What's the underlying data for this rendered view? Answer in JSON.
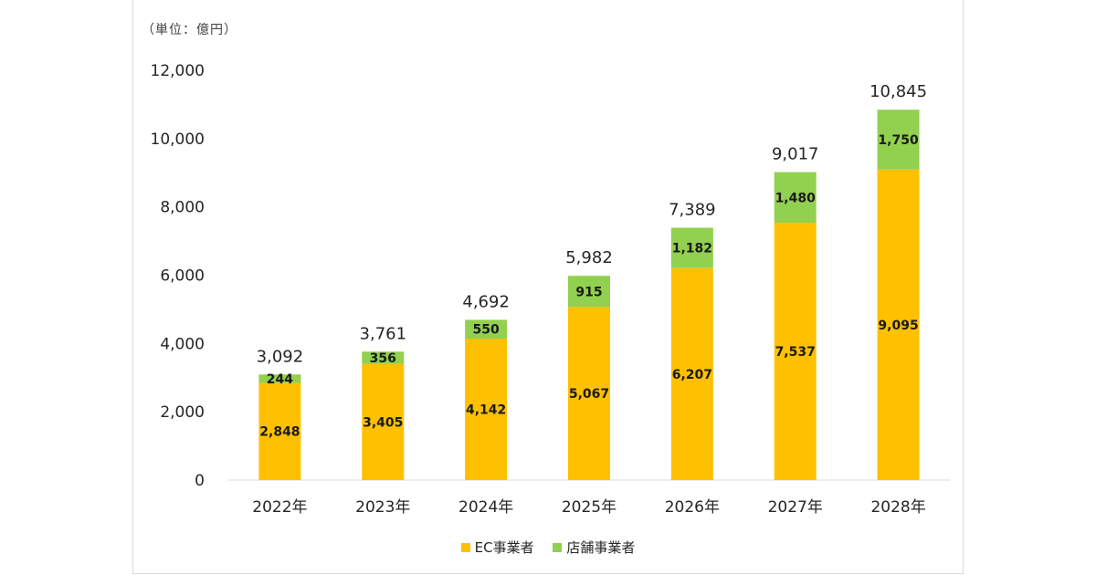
{
  "unit_label": "（単位：億円）",
  "colors": {
    "ec": "#FFC000",
    "store": "#92D050",
    "axis": "#d9d9d9"
  },
  "chart_data": {
    "type": "bar",
    "stacked": true,
    "categories": [
      "2022年",
      "2023年",
      "2024年",
      "2025年",
      "2026年",
      "2027年",
      "2028年"
    ],
    "series": [
      {
        "name": "EC事業者",
        "values": [
          2848,
          3405,
          4142,
          5067,
          6207,
          7537,
          9095
        ]
      },
      {
        "name": "店舗事業者",
        "values": [
          244,
          356,
          550,
          915,
          1182,
          1480,
          1750
        ]
      }
    ],
    "totals": [
      3092,
      3761,
      4692,
      5982,
      7389,
      9017,
      10845
    ],
    "ylim": [
      0,
      12000
    ],
    "yticks": [
      0,
      2000,
      4000,
      6000,
      8000,
      10000,
      12000
    ],
    "grid": false,
    "legend": "bottom"
  }
}
